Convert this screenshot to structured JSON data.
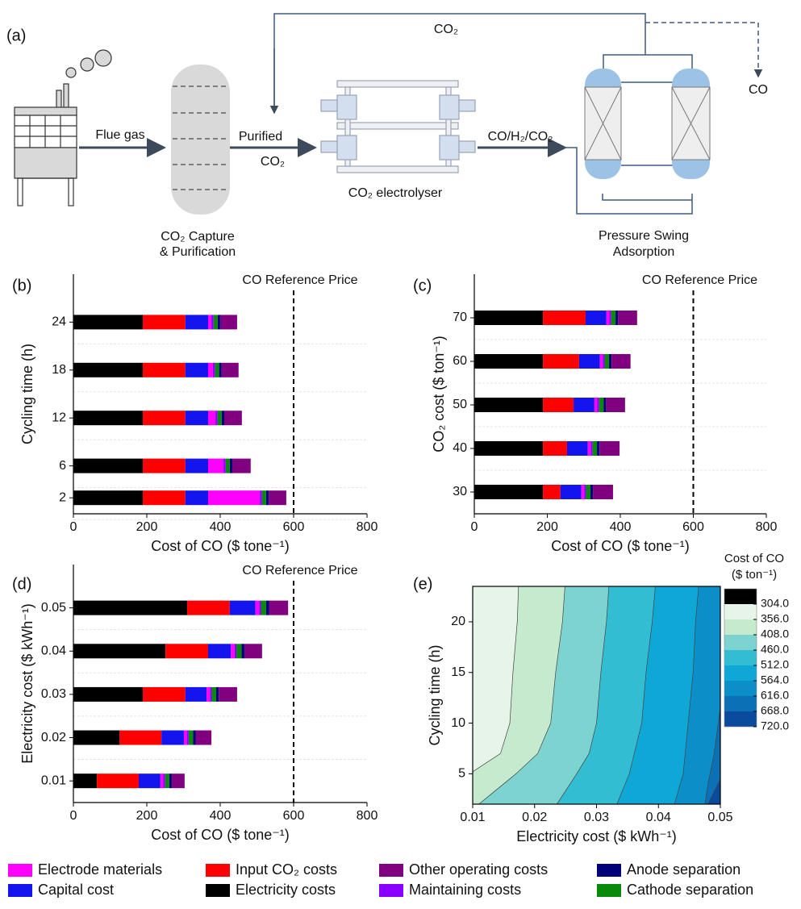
{
  "diagram": {
    "panel": "(a)",
    "flue_gas": "Flue gas",
    "purified": "Purified",
    "purified_co2": "CO₂",
    "capture": [
      "CO₂ Capture",
      "& Purification"
    ],
    "electrolyser": "CO₂ electrolyser",
    "products": "CO/H₂/CO₂",
    "psa": [
      "Pressure Swing",
      "Adsorption"
    ],
    "recycle": "CO₂",
    "outlet": "CO"
  },
  "legend": [
    {
      "name": "Electricity costs",
      "color": "#000000"
    },
    {
      "name": "Input CO₂ costs",
      "color": "#ff0000"
    },
    {
      "name": "Capital cost",
      "color": "#1414ee"
    },
    {
      "name": "Electrode materials",
      "color": "#ff00ff"
    },
    {
      "name": "Maintaining costs",
      "color": "#8a00ff"
    },
    {
      "name": "Cathode separation",
      "color": "#0a8a0a"
    },
    {
      "name": "Anode separation",
      "color": "#00007a"
    },
    {
      "name": "Other operating costs",
      "color": "#800080"
    }
  ],
  "chart_data": [
    {
      "type": "stacked_hbar",
      "panel": "(b)",
      "xlabel": "Cost of CO ($ tone⁻¹)",
      "ylabel": "Cycling time (h)",
      "y": [
        2,
        6,
        12,
        18,
        24
      ],
      "series": [
        {
          "values": [
            189,
            189,
            189,
            189,
            189
          ]
        },
        {
          "values": [
            116,
            116,
            116,
            116,
            116
          ]
        },
        {
          "values": [
            62,
            62,
            62,
            62,
            62
          ]
        },
        {
          "values": [
            141,
            42,
            20,
            13,
            9
          ]
        },
        {
          "values": [
            6,
            6,
            6,
            6,
            6
          ]
        },
        {
          "values": [
            11,
            11,
            11,
            11,
            11
          ]
        },
        {
          "values": [
            7,
            7,
            7,
            7,
            7
          ]
        },
        {
          "values": [
            48,
            50,
            48,
            46,
            46
          ]
        }
      ],
      "xlim": [
        0,
        800
      ],
      "xticks": [
        0,
        200,
        400,
        600,
        800
      ],
      "ylim": [
        0,
        30
      ],
      "yticks": [
        2,
        6,
        12,
        18,
        24
      ],
      "reference": {
        "value": 600,
        "label": "CO Reference Price"
      }
    },
    {
      "type": "stacked_hbar",
      "panel": "(c)",
      "xlabel": "Cost of CO ($ tone⁻¹)",
      "ylabel": "CO₂ cost ($ ton⁻¹)",
      "y": [
        30,
        40,
        50,
        60,
        70
      ],
      "series": [
        {
          "values": [
            188,
            188,
            188,
            188,
            188
          ]
        },
        {
          "values": [
            48,
            66,
            84,
            99,
            117
          ]
        },
        {
          "values": [
            57,
            57,
            57,
            57,
            57
          ]
        },
        {
          "values": [
            8,
            8,
            8,
            8,
            8
          ]
        },
        {
          "values": [
            5,
            5,
            5,
            5,
            5
          ]
        },
        {
          "values": [
            12,
            12,
            12,
            12,
            12
          ]
        },
        {
          "values": [
            7,
            7,
            7,
            7,
            7
          ]
        },
        {
          "values": [
            55,
            55,
            52,
            52,
            52
          ]
        }
      ],
      "xlim": [
        0,
        800
      ],
      "xticks": [
        0,
        200,
        400,
        600,
        800
      ],
      "ylim": [
        25,
        80
      ],
      "yticks": [
        30,
        40,
        50,
        60,
        70
      ],
      "reference": {
        "value": 600,
        "label": "CO Reference Price"
      }
    },
    {
      "type": "stacked_hbar",
      "panel": "(d)",
      "xlabel": "Cost of CO ($ tone⁻¹)",
      "ylabel": "Electricity cost ($ kWh⁻¹)",
      "y": [
        0.01,
        0.02,
        0.03,
        0.04,
        0.05
      ],
      "series": [
        {
          "values": [
            64,
            126,
            189,
            251,
            310
          ]
        },
        {
          "values": [
            114,
            114,
            116,
            116,
            116
          ]
        },
        {
          "values": [
            59,
            61,
            58,
            62,
            70
          ]
        },
        {
          "values": [
            8,
            8,
            9,
            10,
            10
          ]
        },
        {
          "values": [
            5,
            5,
            5,
            5,
            5
          ]
        },
        {
          "values": [
            11,
            12,
            12,
            14,
            14
          ]
        },
        {
          "values": [
            7,
            7,
            7,
            8,
            8
          ]
        },
        {
          "values": [
            35,
            43,
            50,
            48,
            52
          ]
        }
      ],
      "xlim": [
        0,
        800
      ],
      "xticks": [
        0,
        200,
        400,
        600,
        800
      ],
      "ylim": [
        0.005,
        0.06
      ],
      "yticks": [
        0.01,
        0.02,
        0.03,
        0.04,
        0.05
      ],
      "reference": {
        "value": 600,
        "label": "CO Reference Price"
      }
    },
    {
      "type": "contour",
      "panel": "(e)",
      "xlabel": "Electricity cost ($ kWh⁻¹)",
      "ylabel": "Cycling time (h)",
      "xlim": [
        0.01,
        0.05
      ],
      "xticks": [
        0.01,
        0.02,
        0.03,
        0.04,
        0.05
      ],
      "ylim": [
        2,
        23.5
      ],
      "yticks": [
        5,
        10,
        15,
        20
      ],
      "colorbar": {
        "title": [
          "Cost of CO",
          "($ ton⁻¹)"
        ],
        "levels": [
          {
            "value": 304,
            "label": "304.0"
          },
          {
            "value": 356,
            "label": "356.0"
          },
          {
            "value": 408,
            "label": "408.0"
          },
          {
            "value": 460,
            "label": "460.0"
          },
          {
            "value": 512,
            "label": "512.0"
          },
          {
            "value": 564,
            "label": "564.0"
          },
          {
            "value": 616,
            "label": "616.0"
          },
          {
            "value": 668,
            "label": "668.0"
          },
          {
            "value": 720,
            "label": "720.0"
          }
        ],
        "colors": [
          "#000000",
          "#e6f4ea",
          "#c6eacd",
          "#7dd3cf",
          "#33bdd2",
          "#0fa8d6",
          "#0c8fc8",
          "#0b70b5",
          "#0a4b9e"
        ]
      },
      "contours": [
        {
          "level": 356,
          "x": [
            0.0174,
            0.0172,
            0.0165,
            0.016,
            0.0145,
            0.01
          ],
          "y": [
            23.5,
            20,
            15,
            10,
            7,
            5.2
          ]
        },
        {
          "level": 408,
          "x": [
            0.0249,
            0.0245,
            0.0234,
            0.0226,
            0.0205,
            0.017,
            0.013,
            0.011
          ],
          "y": [
            23.5,
            20,
            15,
            10,
            7,
            5,
            3,
            2
          ]
        },
        {
          "level": 460,
          "x": [
            0.032,
            0.0316,
            0.0307,
            0.03,
            0.0288,
            0.0268,
            0.0236
          ],
          "y": [
            23.5,
            20,
            15,
            10,
            7,
            5,
            2
          ]
        },
        {
          "level": 512,
          "x": [
            0.0395,
            0.039,
            0.038,
            0.0373,
            0.0353,
            0.0333
          ],
          "y": [
            23.5,
            20,
            15,
            10,
            5,
            2
          ]
        },
        {
          "level": 564,
          "x": [
            0.0465,
            0.046,
            0.0456,
            0.0448,
            0.044,
            0.0426
          ],
          "y": [
            23.5,
            20,
            15,
            10,
            5,
            2
          ]
        },
        {
          "level": 616,
          "x": [
            0.05,
            0.049,
            0.048,
            0.0475
          ],
          "y": [
            11.5,
            7,
            4,
            2
          ]
        },
        {
          "level": 668,
          "x": [
            0.05,
            0.048
          ],
          "y": [
            4.5,
            2
          ]
        }
      ]
    }
  ]
}
